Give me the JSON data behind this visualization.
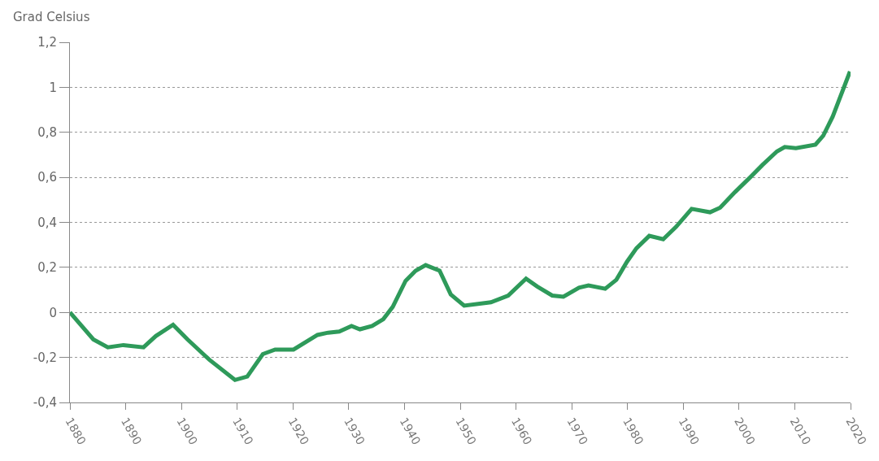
{
  "chart_data": {
    "type": "line",
    "ylabel": "Grad Celsius",
    "x": [
      1880,
      1884.2,
      1886.8,
      1889.6,
      1893.2,
      1895.4,
      1898.5,
      1901.1,
      1905,
      1909.6,
      1911.8,
      1914.6,
      1916.8,
      1920.1,
      1924.4,
      1926.3,
      1928.3,
      1930.5,
      1932,
      1934.2,
      1936.2,
      1937.9,
      1940.2,
      1942,
      1943.8,
      1946.3,
      1948.3,
      1950.7,
      1955.5,
      1958.6,
      1961.8,
      1963.8,
      1966.5,
      1968.5,
      1971.3,
      1973,
      1976,
      1978,
      1979.9,
      1981.6,
      1983.9,
      1986.4,
      1988.7,
      1991.5,
      1994.8,
      1996.6,
      1999.3,
      2002,
      2004.2,
      2006.8,
      2008.2,
      2010.2,
      2013.7,
      2015.1,
      2016.8,
      2019.9
    ],
    "series": [
      {
        "color": "#2e9a5a",
        "values": [
          0,
          -0.12,
          -0.155,
          -0.145,
          -0.155,
          -0.105,
          -0.055,
          -0.12,
          -0.21,
          -0.3,
          -0.285,
          -0.185,
          -0.165,
          -0.165,
          -0.1,
          -0.09,
          -0.085,
          -0.06,
          -0.075,
          -0.06,
          -0.03,
          0.025,
          0.14,
          0.185,
          0.21,
          0.185,
          0.08,
          0.03,
          0.045,
          0.075,
          0.15,
          0.115,
          0.075,
          0.07,
          0.11,
          0.12,
          0.105,
          0.145,
          0.225,
          0.285,
          0.34,
          0.325,
          0.38,
          0.46,
          0.445,
          0.465,
          0.535,
          0.6,
          0.655,
          0.715,
          0.735,
          0.73,
          0.745,
          0.785,
          0.87,
          1.07
        ]
      }
    ],
    "xlim": [
      1880,
      2020
    ],
    "xticks": [
      1880,
      1890,
      1900,
      1910,
      1920,
      1930,
      1940,
      1950,
      1960,
      1970,
      1980,
      1990,
      2000,
      2010,
      2020
    ],
    "ylim": [
      -0.4,
      1.2
    ],
    "yticks": [
      {
        "value": -0.4,
        "label": "-0,4"
      },
      {
        "value": -0.2,
        "label": "-0,2"
      },
      0,
      {
        "value": 0.2,
        "label": "0,2"
      },
      {
        "value": 0.4,
        "label": "0,4"
      },
      {
        "value": 0.6,
        "label": "0,6"
      },
      {
        "value": 0.8,
        "label": "0,8"
      },
      1,
      {
        "value": 1.2,
        "label": "1,2"
      }
    ],
    "grid": "y",
    "marker": "none",
    "line_style": "solid"
  }
}
